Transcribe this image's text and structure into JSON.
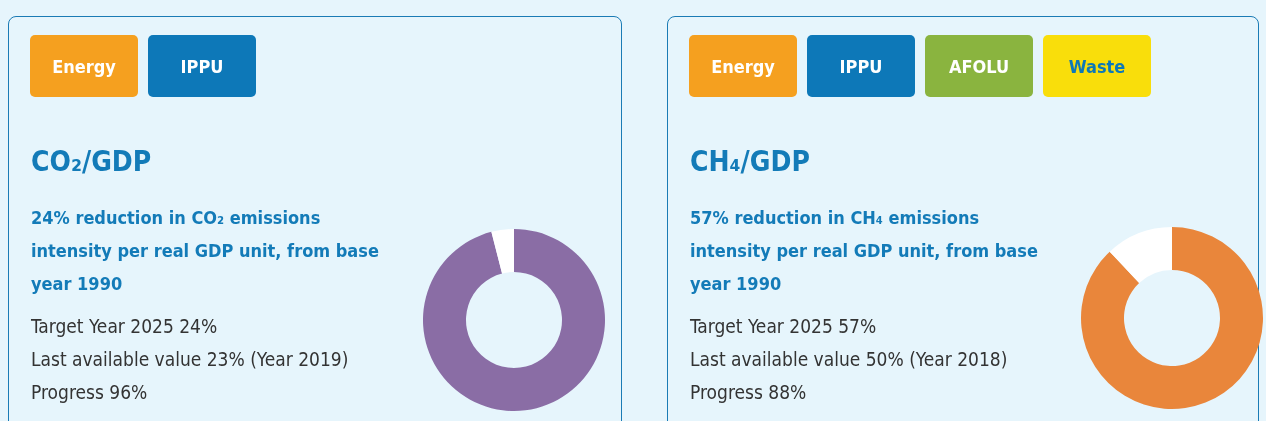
{
  "chart_data": [
    {
      "type": "donut",
      "title": "CO₂/GDP",
      "subtitle": "24% reduction in CO₂ emissions intensity per real GDP unit, from base year 1990",
      "categories": [
        null,
        null
      ],
      "values": [
        96,
        4
      ],
      "colors": [
        "#8a6da5",
        "#ffffff"
      ],
      "annotations": [
        "Energy",
        "IPPU",
        "Target Year 2025 24%",
        "Last available value 23% (Year 2019)",
        "Progress 96%"
      ]
    },
    {
      "type": "donut",
      "title": "CH₄/GDP",
      "subtitle": "57% reduction in CH₄ emissions intensity per real GDP unit, from base year 1990",
      "categories": [
        null,
        null
      ],
      "values": [
        88,
        12
      ],
      "colors": [
        "#e9863b",
        "#ffffff"
      ],
      "annotations": [
        "Energy",
        "IPPU",
        "AFOLU",
        "Waste",
        "Target Year 2025 57%",
        "Last available value 50% (Year 2018)",
        "Progress 88%"
      ]
    }
  ]
}
